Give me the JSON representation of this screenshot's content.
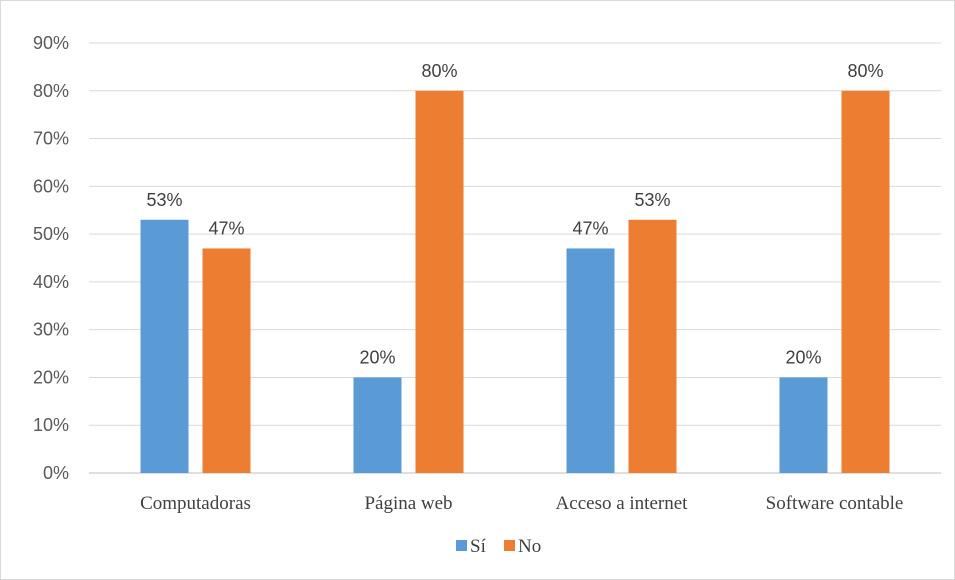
{
  "chart_data": {
    "type": "bar",
    "title": "",
    "xlabel": "",
    "ylabel": "",
    "categories": [
      "Computadoras",
      "Página web",
      "Acceso a internet",
      "Software contable"
    ],
    "series": [
      {
        "name": "Sí",
        "color": "#5B9BD5",
        "values": [
          53,
          20,
          47,
          20
        ],
        "labels": [
          "53%",
          "20%",
          "47%",
          "20%"
        ]
      },
      {
        "name": "No",
        "color": "#ED7D31",
        "values": [
          47,
          80,
          53,
          80
        ],
        "labels": [
          "47%",
          "80%",
          "53%",
          "80%"
        ]
      }
    ],
    "ylim": [
      0,
      90
    ],
    "yticks": [
      0,
      10,
      20,
      30,
      40,
      50,
      60,
      70,
      80,
      90
    ],
    "ytick_labels": [
      "0%",
      "10%",
      "20%",
      "30%",
      "40%",
      "50%",
      "60%",
      "70%",
      "80%",
      "90%"
    ],
    "grid": true,
    "legend": "bottom"
  }
}
